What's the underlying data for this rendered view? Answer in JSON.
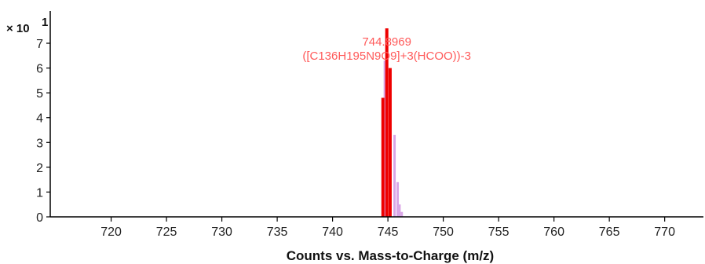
{
  "chart_data": {
    "type": "bar",
    "xlabel": "Counts vs. Mass-to-Charge (m/z)",
    "y_scale_label": "× 10",
    "y_scale_exponent": "1",
    "xlim": [
      714.5,
      773.5
    ],
    "ylim": [
      0,
      8.3
    ],
    "x_ticks": [
      720,
      725,
      730,
      735,
      740,
      745,
      750,
      755,
      760,
      765,
      770
    ],
    "x_tick_labels": [
      "720",
      "725",
      "730",
      "735",
      "740",
      "745",
      "750",
      "755",
      "760",
      "765",
      "770"
    ],
    "y_ticks": [
      0,
      1,
      2,
      3,
      4,
      5,
      6,
      7
    ],
    "y_tick_labels": [
      "0",
      "1",
      "2",
      "3",
      "4",
      "5",
      "6",
      "7"
    ],
    "grid": false,
    "series": [
      {
        "color": "#ee0000",
        "points": [
          {
            "x": 744.55,
            "y": 4.8
          },
          {
            "x": 744.9,
            "y": 7.6
          },
          {
            "x": 745.2,
            "y": 6.0
          }
        ]
      },
      {
        "color": "#d9a6e6",
        "points": [
          {
            "x": 744.72,
            "y": 6.3
          },
          {
            "x": 745.6,
            "y": 3.3
          },
          {
            "x": 745.88,
            "y": 1.4
          },
          {
            "x": 746.05,
            "y": 0.5
          },
          {
            "x": 746.25,
            "y": 0.2
          }
        ]
      }
    ],
    "annotations": [
      {
        "lines": [
          "744.8969",
          "([C136H195N9O9]+3(HCOO))-3"
        ],
        "x": 744.9,
        "color": "#ff5a5a"
      }
    ]
  }
}
